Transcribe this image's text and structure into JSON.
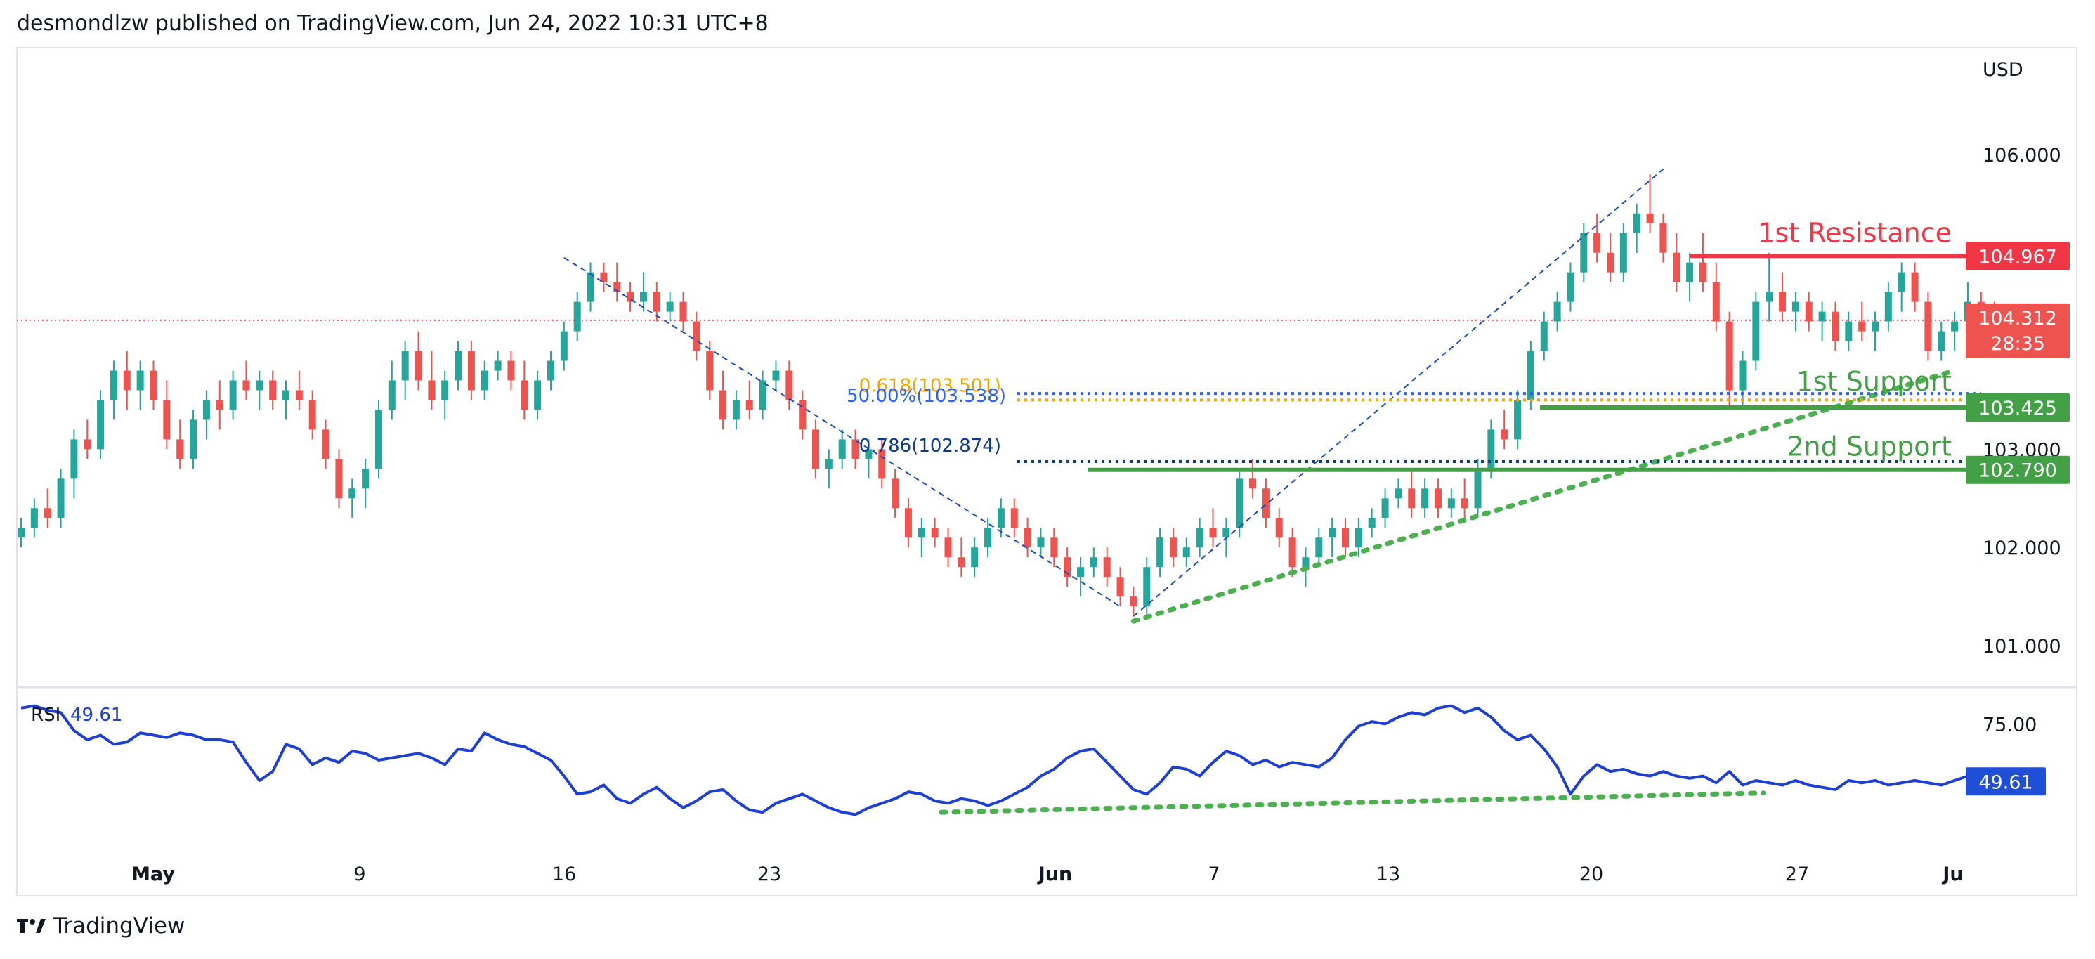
{
  "header": {
    "published": "desmondlzw published on TradingView.com, Jun 24, 2022 10:31 UTC+8"
  },
  "footer": {
    "brand": "TradingView",
    "logo_icon": "tradingview-logo-icon"
  },
  "colors": {
    "up": "#26a69a",
    "down": "#ef5350",
    "resistance": "#f23645",
    "support": "#43a047",
    "support_dots": "#4caf50",
    "fib_618": "#f0a500",
    "fib_50": "#2962ff",
    "fib_786": "#0d3b8c",
    "trend_dash": "#1a4bb8",
    "rsi_line": "#1e3fd4",
    "rsi_badge": "#1e4fd6",
    "last_badge": "#ef5350"
  },
  "chart_data": [
    {
      "type": "candlestick",
      "currency": "USD",
      "y_ticks": [
        "106.000",
        "103.000",
        "102.000",
        "101.000"
      ],
      "x_ticks": [
        "May",
        "9",
        "16",
        "23",
        "Jun",
        "7",
        "13",
        "20",
        "27",
        "Ju"
      ],
      "ylim": [
        100.6,
        107.0
      ],
      "last_price": {
        "value": 104.312,
        "label": "104.312",
        "countdown": "28:35"
      },
      "levels": [
        {
          "name": "1st Resistance",
          "label": "104.967",
          "value": 104.967,
          "role": "resistance"
        },
        {
          "name": "1st Support",
          "label": "103.425",
          "value": 103.425,
          "role": "support"
        },
        {
          "name": "2nd Support",
          "label": "102.790",
          "value": 102.79,
          "role": "support"
        }
      ],
      "fibonacci": [
        {
          "label": "0.618(103.501)",
          "value": 103.501
        },
        {
          "label": "50.00%(103.538)",
          "value": 103.538
        },
        {
          "label": "0.786(102.874)",
          "value": 102.874
        }
      ],
      "candles": [
        [
          102.1,
          102.3,
          102.0,
          102.2
        ],
        [
          102.2,
          102.5,
          102.1,
          102.4
        ],
        [
          102.4,
          102.6,
          102.2,
          102.3
        ],
        [
          102.3,
          102.8,
          102.2,
          102.7
        ],
        [
          102.7,
          103.2,
          102.5,
          103.1
        ],
        [
          103.1,
          103.3,
          102.9,
          103.0
        ],
        [
          103.0,
          103.6,
          102.9,
          103.5
        ],
        [
          103.5,
          103.9,
          103.3,
          103.8
        ],
        [
          103.8,
          104.0,
          103.4,
          103.6
        ],
        [
          103.6,
          103.9,
          103.4,
          103.8
        ],
        [
          103.8,
          103.9,
          103.4,
          103.5
        ],
        [
          103.5,
          103.7,
          103.0,
          103.1
        ],
        [
          103.1,
          103.3,
          102.8,
          102.9
        ],
        [
          102.9,
          103.4,
          102.8,
          103.3
        ],
        [
          103.3,
          103.6,
          103.1,
          103.5
        ],
        [
          103.5,
          103.7,
          103.2,
          103.4
        ],
        [
          103.4,
          103.8,
          103.3,
          103.7
        ],
        [
          103.7,
          103.9,
          103.5,
          103.6
        ],
        [
          103.6,
          103.8,
          103.4,
          103.7
        ],
        [
          103.7,
          103.8,
          103.4,
          103.5
        ],
        [
          103.5,
          103.7,
          103.3,
          103.6
        ],
        [
          103.6,
          103.8,
          103.4,
          103.5
        ],
        [
          103.5,
          103.6,
          103.1,
          103.2
        ],
        [
          103.2,
          103.3,
          102.8,
          102.9
        ],
        [
          102.9,
          103.0,
          102.4,
          102.5
        ],
        [
          102.5,
          102.7,
          102.3,
          102.6
        ],
        [
          102.6,
          102.9,
          102.4,
          102.8
        ],
        [
          102.8,
          103.5,
          102.7,
          103.4
        ],
        [
          103.4,
          103.9,
          103.3,
          103.7
        ],
        [
          103.7,
          104.1,
          103.5,
          104.0
        ],
        [
          104.0,
          104.2,
          103.6,
          103.7
        ],
        [
          103.7,
          104.0,
          103.4,
          103.5
        ],
        [
          103.5,
          103.8,
          103.3,
          103.7
        ],
        [
          103.7,
          104.1,
          103.6,
          104.0
        ],
        [
          104.0,
          104.1,
          103.5,
          103.6
        ],
        [
          103.6,
          103.9,
          103.5,
          103.8
        ],
        [
          103.8,
          104.0,
          103.7,
          103.9
        ],
        [
          103.9,
          104.0,
          103.6,
          103.7
        ],
        [
          103.7,
          103.9,
          103.3,
          103.4
        ],
        [
          103.4,
          103.8,
          103.3,
          103.7
        ],
        [
          103.7,
          104.0,
          103.6,
          103.9
        ],
        [
          103.9,
          104.3,
          103.8,
          104.2
        ],
        [
          104.2,
          104.6,
          104.1,
          104.5
        ],
        [
          104.5,
          104.9,
          104.4,
          104.8
        ],
        [
          104.8,
          104.9,
          104.6,
          104.7
        ],
        [
          104.7,
          104.9,
          104.5,
          104.6
        ],
        [
          104.6,
          104.7,
          104.4,
          104.5
        ],
        [
          104.5,
          104.8,
          104.4,
          104.6
        ],
        [
          104.6,
          104.7,
          104.3,
          104.4
        ],
        [
          104.4,
          104.6,
          104.3,
          104.5
        ],
        [
          104.5,
          104.6,
          104.2,
          104.3
        ],
        [
          104.3,
          104.4,
          103.9,
          104.0
        ],
        [
          104.0,
          104.1,
          103.5,
          103.6
        ],
        [
          103.6,
          103.8,
          103.2,
          103.3
        ],
        [
          103.3,
          103.6,
          103.2,
          103.5
        ],
        [
          103.5,
          103.7,
          103.3,
          103.4
        ],
        [
          103.4,
          103.8,
          103.3,
          103.7
        ],
        [
          103.7,
          103.9,
          103.6,
          103.8
        ],
        [
          103.8,
          103.9,
          103.4,
          103.5
        ],
        [
          103.5,
          103.6,
          103.1,
          103.2
        ],
        [
          103.2,
          103.3,
          102.7,
          102.8
        ],
        [
          102.8,
          103.0,
          102.6,
          102.9
        ],
        [
          102.9,
          103.2,
          102.8,
          103.1
        ],
        [
          103.1,
          103.2,
          102.8,
          102.9
        ],
        [
          102.9,
          103.1,
          102.7,
          103.0
        ],
        [
          103.0,
          103.1,
          102.6,
          102.7
        ],
        [
          102.7,
          102.8,
          102.3,
          102.4
        ],
        [
          102.4,
          102.5,
          102.0,
          102.1
        ],
        [
          102.1,
          102.3,
          101.9,
          102.2
        ],
        [
          102.2,
          102.3,
          102.0,
          102.1
        ],
        [
          102.1,
          102.2,
          101.8,
          101.9
        ],
        [
          101.9,
          102.1,
          101.7,
          101.8
        ],
        [
          101.8,
          102.1,
          101.7,
          102.0
        ],
        [
          102.0,
          102.3,
          101.9,
          102.2
        ],
        [
          102.2,
          102.5,
          102.1,
          102.4
        ],
        [
          102.4,
          102.5,
          102.1,
          102.2
        ],
        [
          102.2,
          102.3,
          101.9,
          102.0
        ],
        [
          102.0,
          102.2,
          101.9,
          102.1
        ],
        [
          102.1,
          102.2,
          101.8,
          101.9
        ],
        [
          101.9,
          102.0,
          101.6,
          101.7
        ],
        [
          101.7,
          101.9,
          101.5,
          101.8
        ],
        [
          101.8,
          102.0,
          101.7,
          101.9
        ],
        [
          101.9,
          102.0,
          101.6,
          101.7
        ],
        [
          101.7,
          101.8,
          101.4,
          101.5
        ],
        [
          101.5,
          101.6,
          101.3,
          101.4
        ],
        [
          101.4,
          101.9,
          101.3,
          101.8
        ],
        [
          101.8,
          102.2,
          101.7,
          102.1
        ],
        [
          102.1,
          102.2,
          101.8,
          101.9
        ],
        [
          101.9,
          102.1,
          101.8,
          102.0
        ],
        [
          102.0,
          102.3,
          101.9,
          102.2
        ],
        [
          102.2,
          102.4,
          102.0,
          102.1
        ],
        [
          102.1,
          102.3,
          101.9,
          102.2
        ],
        [
          102.2,
          102.8,
          102.1,
          102.7
        ],
        [
          102.7,
          102.9,
          102.5,
          102.6
        ],
        [
          102.6,
          102.7,
          102.2,
          102.3
        ],
        [
          102.3,
          102.4,
          102.0,
          102.1
        ],
        [
          102.1,
          102.2,
          101.7,
          101.8
        ],
        [
          101.8,
          102.0,
          101.6,
          101.9
        ],
        [
          101.9,
          102.2,
          101.8,
          102.1
        ],
        [
          102.1,
          102.3,
          101.9,
          102.2
        ],
        [
          102.2,
          102.3,
          101.9,
          102.0
        ],
        [
          102.0,
          102.3,
          101.9,
          102.2
        ],
        [
          102.2,
          102.4,
          102.1,
          102.3
        ],
        [
          102.3,
          102.6,
          102.2,
          102.5
        ],
        [
          102.5,
          102.7,
          102.4,
          102.6
        ],
        [
          102.6,
          102.8,
          102.3,
          102.4
        ],
        [
          102.4,
          102.7,
          102.3,
          102.6
        ],
        [
          102.6,
          102.7,
          102.3,
          102.4
        ],
        [
          102.4,
          102.6,
          102.3,
          102.5
        ],
        [
          102.5,
          102.7,
          102.3,
          102.4
        ],
        [
          102.4,
          102.9,
          102.3,
          102.8
        ],
        [
          102.8,
          103.3,
          102.7,
          103.2
        ],
        [
          103.2,
          103.4,
          103.0,
          103.1
        ],
        [
          103.1,
          103.6,
          103.0,
          103.5
        ],
        [
          103.5,
          104.1,
          103.4,
          104.0
        ],
        [
          104.0,
          104.4,
          103.9,
          104.3
        ],
        [
          104.3,
          104.6,
          104.2,
          104.5
        ],
        [
          104.5,
          104.9,
          104.4,
          104.8
        ],
        [
          104.8,
          105.3,
          104.7,
          105.2
        ],
        [
          105.2,
          105.4,
          104.9,
          105.0
        ],
        [
          105.0,
          105.2,
          104.7,
          104.8
        ],
        [
          104.8,
          105.3,
          104.7,
          105.2
        ],
        [
          105.2,
          105.5,
          105.0,
          105.4
        ],
        [
          105.4,
          105.8,
          105.2,
          105.3
        ],
        [
          105.3,
          105.4,
          104.9,
          105.0
        ],
        [
          105.0,
          105.2,
          104.6,
          104.7
        ],
        [
          104.7,
          105.0,
          104.5,
          104.9
        ],
        [
          104.9,
          105.2,
          104.6,
          104.7
        ],
        [
          104.7,
          104.9,
          104.2,
          104.3
        ],
        [
          104.3,
          104.4,
          103.4,
          103.6
        ],
        [
          103.6,
          104.0,
          103.4,
          103.9
        ],
        [
          103.9,
          104.6,
          103.8,
          104.5
        ],
        [
          104.5,
          105.0,
          104.3,
          104.6
        ],
        [
          104.6,
          104.8,
          104.3,
          104.4
        ],
        [
          104.4,
          104.6,
          104.2,
          104.5
        ],
        [
          104.5,
          104.6,
          104.2,
          104.3
        ],
        [
          104.3,
          104.5,
          104.1,
          104.4
        ],
        [
          104.4,
          104.5,
          104.0,
          104.1
        ],
        [
          104.1,
          104.4,
          104.0,
          104.3
        ],
        [
          104.3,
          104.5,
          104.1,
          104.2
        ],
        [
          104.2,
          104.4,
          104.0,
          104.3
        ],
        [
          104.3,
          104.7,
          104.2,
          104.6
        ],
        [
          104.6,
          104.9,
          104.4,
          104.8
        ],
        [
          104.8,
          104.9,
          104.4,
          104.5
        ],
        [
          104.5,
          104.6,
          103.9,
          104.0
        ],
        [
          104.0,
          104.3,
          103.9,
          104.2
        ],
        [
          104.2,
          104.4,
          104.0,
          104.3
        ],
        [
          104.3,
          104.7,
          104.2,
          104.5
        ],
        [
          104.5,
          104.6,
          104.2,
          104.4
        ],
        [
          104.4,
          104.5,
          104.1,
          104.3
        ]
      ]
    },
    {
      "type": "line",
      "indicator": "RSI",
      "name": "RSI",
      "value_label": "49.61",
      "y_ticks": [
        "75.00"
      ],
      "ylim": [
        10,
        90
      ],
      "values": [
        82,
        83,
        81,
        80,
        72,
        68,
        70,
        66,
        67,
        71,
        70,
        69,
        71,
        70,
        68,
        68,
        67,
        58,
        50,
        54,
        66,
        64,
        57,
        60,
        58,
        63,
        62,
        59,
        60,
        61,
        62,
        60,
        57,
        64,
        63,
        71,
        68,
        66,
        65,
        62,
        59,
        52,
        44,
        45,
        48,
        42,
        40,
        44,
        47,
        42,
        38,
        41,
        45,
        46,
        41,
        37,
        36,
        40,
        42,
        44,
        41,
        38,
        36,
        35,
        38,
        40,
        42,
        45,
        44,
        41,
        40,
        42,
        41,
        39,
        41,
        44,
        47,
        52,
        55,
        60,
        63,
        64,
        58,
        52,
        46,
        44,
        49,
        56,
        55,
        52,
        58,
        63,
        61,
        57,
        59,
        56,
        58,
        57,
        56,
        60,
        68,
        74,
        76,
        75,
        78,
        80,
        79,
        82,
        83,
        80,
        82,
        78,
        72,
        68,
        70,
        64,
        56,
        44,
        52,
        57,
        54,
        55,
        53,
        52,
        54,
        52,
        51,
        52,
        49,
        54,
        48,
        50,
        49,
        48,
        50,
        48,
        47,
        46,
        50,
        49,
        50,
        48,
        49,
        50,
        49,
        48,
        50,
        52,
        49,
        48,
        50,
        49.6
      ]
    }
  ]
}
